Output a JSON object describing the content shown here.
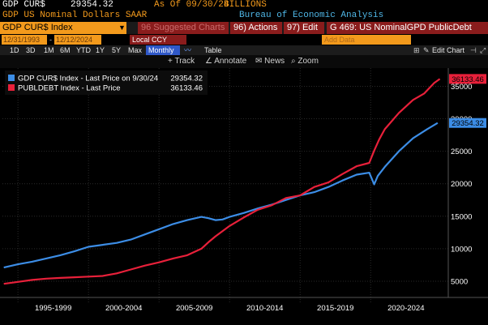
{
  "header": {
    "ticker_value": "GDP CUR$",
    "last_value": "29354.32",
    "as_of": "As Of 09/30/24",
    "units": "BILLIONS",
    "description": "GDP US Nominal Dollars SAAR",
    "source": "Bureau of Economic Analysis"
  },
  "toolbar": {
    "ticker": "GDP CUR$ Index",
    "suggested_charts": "96 Suggested Charts",
    "actions": "96) Actions",
    "edit": "97) Edit",
    "chart_id": "G 469: US NominalGPD PublicDebt"
  },
  "settings": {
    "start_date": "12/31/1993",
    "end_date": "12/12/2024",
    "currency": "Local CCY",
    "add_data_placeholder": "Add Data",
    "edit_chart": "Edit Chart"
  },
  "ranges": [
    "1D",
    "3D",
    "1M",
    "6M",
    "YTD",
    "1Y",
    "5Y",
    "Max"
  ],
  "range_selected": "Monthly",
  "table_label": "Table",
  "tools": {
    "track": "Track",
    "annotate": "Annotate",
    "news": "News",
    "zoom": "Zoom"
  },
  "colors": {
    "gdp": "#3c8de6",
    "debt": "#e8203a",
    "accent": "#f39a1c"
  },
  "chart_data": {
    "type": "line",
    "x_categories": [
      "1995-1999",
      "2000-2004",
      "2005-2009",
      "2010-2014",
      "2015-2019",
      "2020-2024"
    ],
    "x_range": [
      1993.9,
      2025.5
    ],
    "ylim": [
      2500,
      37800
    ],
    "y_ticks": [
      5000,
      10000,
      15000,
      20000,
      25000,
      30000,
      35000
    ],
    "y_tick_labels": [
      "5000",
      "10000",
      "15000",
      "20000",
      "25000",
      "30000",
      "35000"
    ],
    "legend": [
      {
        "label": "GDP CUR$ Index - Last Price on 9/30/24",
        "value": "29354.32"
      },
      {
        "label": "PUBLDEBT Index - Last Price",
        "value": "36133.46"
      }
    ],
    "last_labels": [
      "29354.32",
      "36133.46"
    ],
    "series": [
      {
        "name": "GDP CUR$ Index",
        "x": [
          1994.0,
          1995.0,
          1996.0,
          1997.0,
          1998.0,
          1999.0,
          2000.0,
          2001.0,
          2002.0,
          2003.0,
          2004.0,
          2005.0,
          2006.0,
          2007.0,
          2008.0,
          2008.5,
          2009.0,
          2009.5,
          2010.0,
          2011.0,
          2012.0,
          2013.0,
          2014.0,
          2015.0,
          2016.0,
          2017.0,
          2018.0,
          2019.0,
          2019.9,
          2020.25,
          2020.5,
          2021.0,
          2022.0,
          2023.0,
          2024.0,
          2024.75
        ],
        "values": [
          7100,
          7600,
          8000,
          8500,
          9000,
          9600,
          10300,
          10600,
          10900,
          11400,
          12200,
          13000,
          13800,
          14400,
          14900,
          14700,
          14400,
          14500,
          14900,
          15500,
          16200,
          16800,
          17500,
          18200,
          18700,
          19500,
          20500,
          21400,
          21700,
          19900,
          21200,
          22600,
          25000,
          27000,
          28400,
          29354.32
        ]
      },
      {
        "name": "PUBLDEBT Index",
        "x": [
          1994.0,
          1995.0,
          1996.0,
          1997.0,
          1998.0,
          1999.0,
          2000.0,
          2001.0,
          2002.0,
          2003.0,
          2004.0,
          2005.0,
          2006.0,
          2007.0,
          2008.0,
          2008.5,
          2009.0,
          2010.0,
          2011.0,
          2012.0,
          2013.0,
          2014.0,
          2015.0,
          2016.0,
          2017.0,
          2018.0,
          2019.0,
          2019.9,
          2020.25,
          2020.6,
          2021.0,
          2022.0,
          2023.0,
          2023.8,
          2024.5,
          2024.9
        ],
        "values": [
          4600,
          4900,
          5200,
          5400,
          5500,
          5600,
          5700,
          5800,
          6200,
          6800,
          7400,
          7900,
          8500,
          9000,
          10000,
          11000,
          11900,
          13500,
          14800,
          16000,
          16700,
          17800,
          18200,
          19500,
          20200,
          21500,
          22700,
          23200,
          25100,
          26800,
          28400,
          30900,
          32900,
          33900,
          35500,
          36133.46
        ]
      }
    ]
  }
}
